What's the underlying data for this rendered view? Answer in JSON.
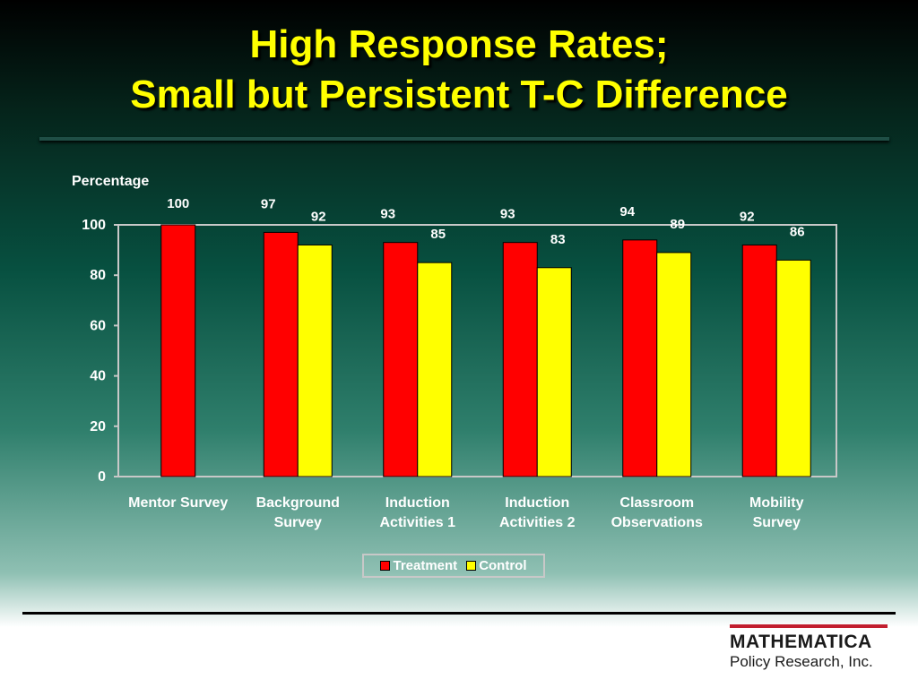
{
  "slide": {
    "title_line1": "High Response Rates;",
    "title_line2": "Small but Persistent T-C Difference",
    "logo": {
      "name": "MATHEMATICA",
      "subtitle": "Policy Research, Inc.",
      "accent_color": "#c21f2f"
    }
  },
  "chart_data": {
    "type": "bar",
    "title": "",
    "xlabel": "",
    "ylabel": "Percentage",
    "ylim": [
      0,
      100
    ],
    "yticks": [
      0,
      20,
      40,
      60,
      80,
      100
    ],
    "grid": false,
    "legend_position": "bottom",
    "categories": [
      [
        "Mentor Survey"
      ],
      [
        "Background",
        "Survey"
      ],
      [
        "Induction",
        "Activities 1"
      ],
      [
        "Induction",
        "Activities 2"
      ],
      [
        "Classroom",
        "Observations"
      ],
      [
        "Mobility",
        "Survey"
      ]
    ],
    "series": [
      {
        "name": "Treatment",
        "color": "#ff0000",
        "values": [
          100,
          97,
          93,
          93,
          94,
          92
        ]
      },
      {
        "name": "Control",
        "color": "#ffff00",
        "values": [
          null,
          92,
          85,
          83,
          89,
          86
        ]
      }
    ]
  }
}
